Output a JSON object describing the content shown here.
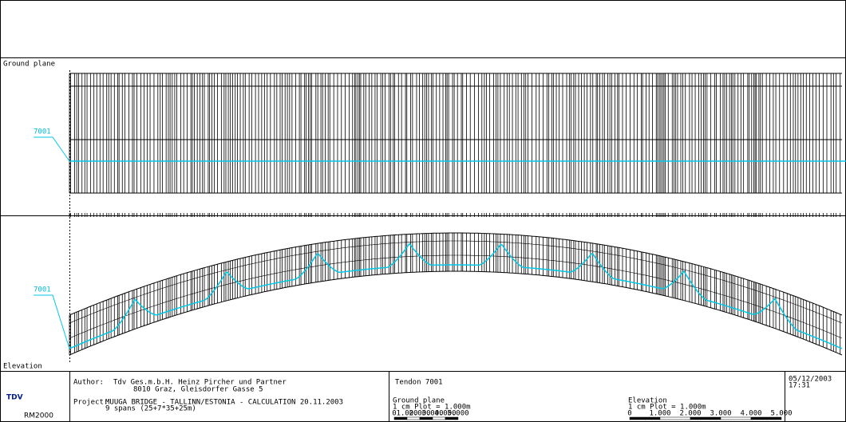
{
  "sections": {
    "ground_plane": {
      "title": "Ground plane",
      "tendon_label": "7001"
    },
    "elevation": {
      "title": "Elevation",
      "tendon_label": "7001"
    }
  },
  "title_block": {
    "logo": "TDV",
    "software": "RM2000",
    "author_label": "Author:",
    "author_line1": "Tdv Ges.m.b.H. Heinz Pircher und Partner",
    "author_line2": "8010 Graz, Gleisdorfer Gasse 5",
    "project_label": "Project:",
    "project_line1": "MUUGA BRIDGE - TALLINN/ESTONIA - CALCULATION 20.11.2003",
    "project_line2": "9 spans (25+7*35+25m)",
    "tendon": "Tendon 7001",
    "ground_scale": {
      "title": "Ground plane",
      "scale": "1 cm Plot = 1.000m",
      "ticks": [
        "0",
        "1.000",
        "2.000",
        "3.000",
        "4.000",
        "5.000"
      ]
    },
    "elevation_scale": {
      "title": "Elevation",
      "scale": "1 cm Plot = 1.000m",
      "ticks": [
        "0",
        "1.000",
        "2.000",
        "3.000",
        "4.000",
        "5.000"
      ]
    },
    "date": "05/12/2003",
    "time": "17:31"
  }
}
